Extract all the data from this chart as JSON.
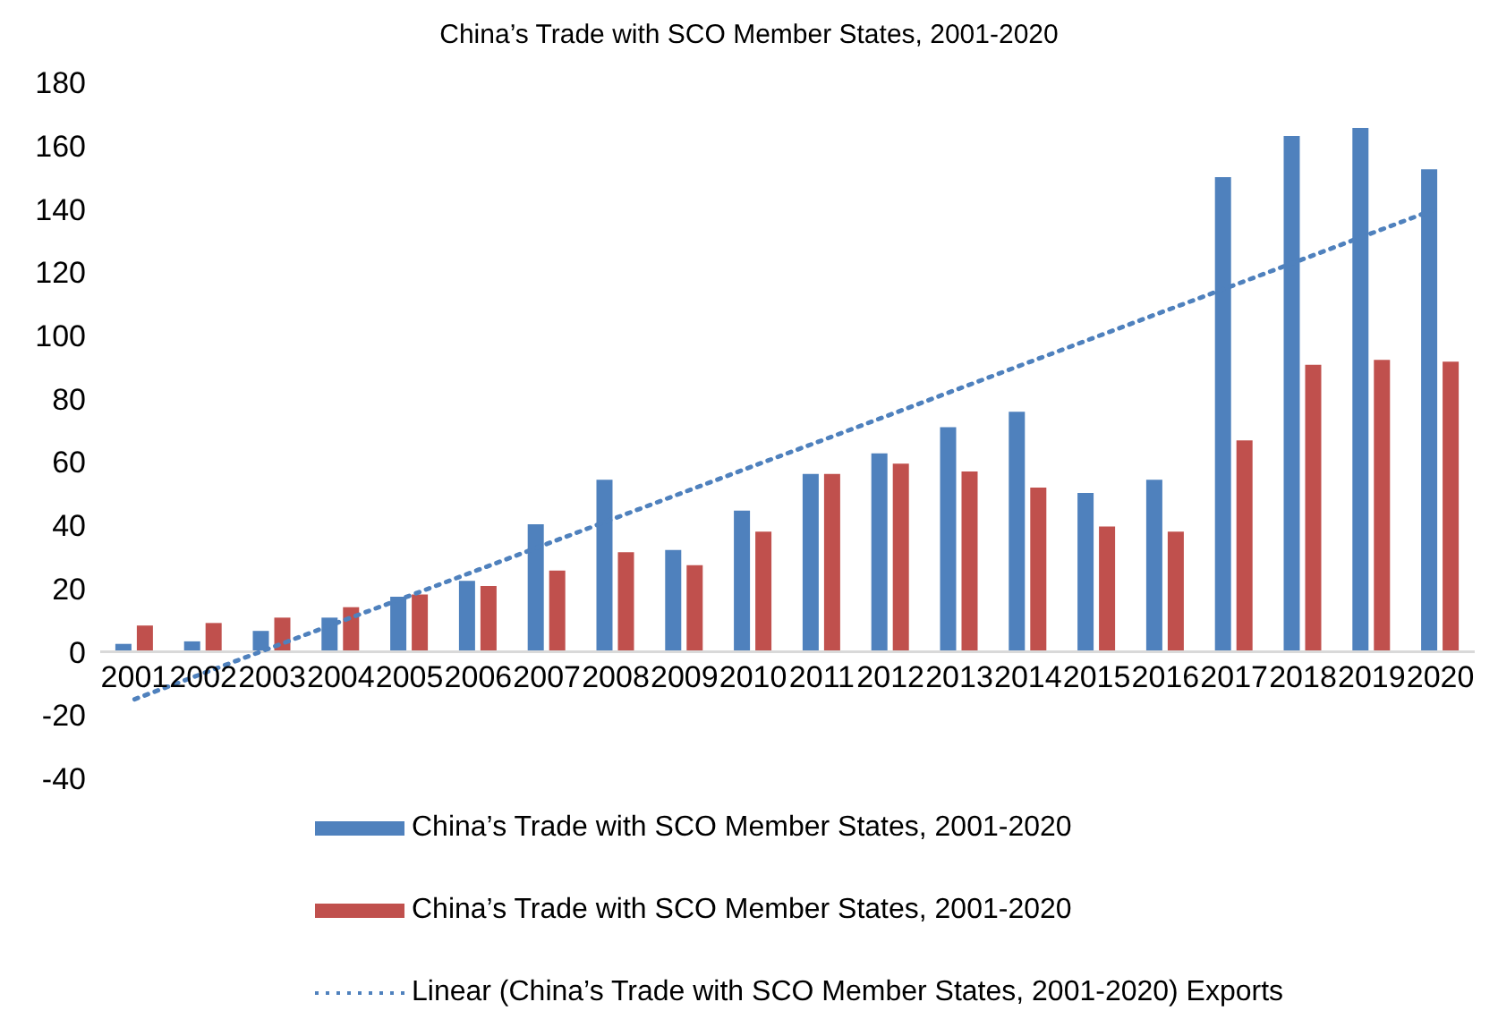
{
  "chart_data": {
    "type": "bar",
    "title": "China’s Trade with SCO Member States, 2001-2020",
    "categories": [
      "2001",
      "2002",
      "2003",
      "2004",
      "2005",
      "2006",
      "2007",
      "2008",
      "2009",
      "2010",
      "2011",
      "2012",
      "2013",
      "2014",
      "2015",
      "2016",
      "2017",
      "2018",
      "2019",
      "2020"
    ],
    "series": [
      {
        "name": "China’s Trade with SCO Member States, 2001-2020",
        "color": "#4f81bd",
        "values": [
          2.5,
          3.3,
          6.6,
          10.8,
          17.4,
          22.4,
          40.3,
          54.4,
          32.2,
          44.6,
          56.2,
          62.7,
          71.0,
          75.9,
          50.2,
          54.4,
          150,
          163,
          165.6,
          152.5
        ]
      },
      {
        "name": "China’s Trade with SCO Member States, 2001-2020",
        "color": "#c0504d",
        "values": [
          8.3,
          9.1,
          10.8,
          14.1,
          18.1,
          20.8,
          25.7,
          31.5,
          27.4,
          38.0,
          56.2,
          59.5,
          57.0,
          51.9,
          39.6,
          38.0,
          66.8,
          90.7,
          92.3,
          91.7
        ]
      },
      {
        "name": "Linear (China’s Trade with SCO Member States, 2001-2020) Exports",
        "type": "line",
        "line_style": "dotted",
        "marker": "none",
        "color": "#4f81bd",
        "values": [
          -15,
          -6.8,
          1.4,
          9.6,
          17.7,
          25.9,
          34.1,
          42.3,
          50.5,
          58.7,
          66.8,
          75.0,
          83.2,
          91.4,
          99.6,
          107.8,
          115.9,
          124.1,
          132.3,
          140.5
        ]
      }
    ],
    "ylim": [
      -40,
      180
    ],
    "yticks": [
      -40,
      -20,
      0,
      20,
      40,
      60,
      80,
      100,
      120,
      140,
      160,
      180
    ],
    "grid": false,
    "legend": "bottom"
  }
}
